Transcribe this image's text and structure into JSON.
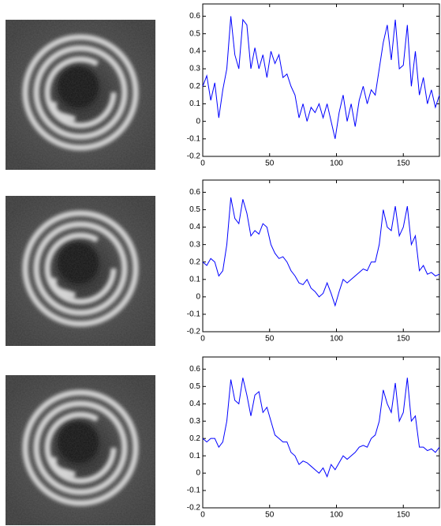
{
  "chart_data": [
    {
      "type": "line",
      "color": "#0000ff",
      "xlim": [
        0,
        177
      ],
      "ylim": [
        -0.2,
        0.67
      ],
      "xticks": [
        0,
        50,
        100,
        150
      ],
      "yticks": [
        -0.2,
        -0.1,
        0,
        0.1,
        0.2,
        0.3,
        0.4,
        0.5,
        0.6
      ],
      "x": [
        0,
        3,
        6,
        9,
        12,
        15,
        18,
        21,
        24,
        27,
        30,
        33,
        36,
        39,
        42,
        45,
        48,
        51,
        54,
        57,
        60,
        63,
        66,
        69,
        72,
        75,
        78,
        81,
        84,
        87,
        90,
        93,
        96,
        99,
        102,
        105,
        108,
        111,
        114,
        117,
        120,
        123,
        126,
        129,
        132,
        135,
        138,
        141,
        144,
        147,
        150,
        153,
        156,
        159,
        162,
        165,
        168,
        171,
        174,
        177
      ],
      "values": [
        0.2,
        0.26,
        0.12,
        0.22,
        0.02,
        0.18,
        0.3,
        0.6,
        0.38,
        0.3,
        0.58,
        0.55,
        0.3,
        0.42,
        0.3,
        0.38,
        0.25,
        0.4,
        0.33,
        0.38,
        0.25,
        0.27,
        0.2,
        0.15,
        0.02,
        0.1,
        0.0,
        0.08,
        0.05,
        0.1,
        0.02,
        0.1,
        0.0,
        -0.1,
        0.05,
        0.15,
        0.0,
        0.1,
        -0.03,
        0.12,
        0.2,
        0.1,
        0.18,
        0.15,
        0.3,
        0.45,
        0.55,
        0.35,
        0.58,
        0.3,
        0.32,
        0.55,
        0.2,
        0.4,
        0.15,
        0.25,
        0.1,
        0.18,
        0.08,
        0.15
      ]
    },
    {
      "type": "line",
      "color": "#0000ff",
      "xlim": [
        0,
        177
      ],
      "ylim": [
        -0.2,
        0.67
      ],
      "xticks": [
        0,
        50,
        100,
        150
      ],
      "yticks": [
        -0.2,
        -0.1,
        0,
        0.1,
        0.2,
        0.3,
        0.4,
        0.5,
        0.6
      ],
      "x": [
        0,
        3,
        6,
        9,
        12,
        15,
        18,
        21,
        24,
        27,
        30,
        33,
        36,
        39,
        42,
        45,
        48,
        51,
        54,
        57,
        60,
        63,
        66,
        69,
        72,
        75,
        78,
        81,
        84,
        87,
        90,
        93,
        96,
        99,
        102,
        105,
        108,
        111,
        114,
        117,
        120,
        123,
        126,
        129,
        132,
        135,
        138,
        141,
        144,
        147,
        150,
        153,
        156,
        159,
        162,
        165,
        168,
        171,
        174,
        177
      ],
      "values": [
        0.2,
        0.18,
        0.22,
        0.2,
        0.12,
        0.15,
        0.3,
        0.57,
        0.45,
        0.42,
        0.56,
        0.48,
        0.35,
        0.38,
        0.36,
        0.42,
        0.4,
        0.3,
        0.25,
        0.22,
        0.23,
        0.2,
        0.15,
        0.12,
        0.08,
        0.07,
        0.1,
        0.05,
        0.03,
        0.0,
        0.02,
        0.08,
        0.02,
        -0.05,
        0.03,
        0.1,
        0.08,
        0.1,
        0.12,
        0.14,
        0.16,
        0.15,
        0.2,
        0.2,
        0.3,
        0.5,
        0.4,
        0.38,
        0.52,
        0.35,
        0.4,
        0.52,
        0.3,
        0.35,
        0.15,
        0.18,
        0.13,
        0.14,
        0.12,
        0.13
      ]
    },
    {
      "type": "line",
      "color": "#0000ff",
      "xlim": [
        0,
        177
      ],
      "ylim": [
        -0.2,
        0.67
      ],
      "xticks": [
        0,
        50,
        100,
        150
      ],
      "yticks": [
        -0.2,
        -0.1,
        0,
        0.1,
        0.2,
        0.3,
        0.4,
        0.5,
        0.6
      ],
      "x": [
        0,
        3,
        6,
        9,
        12,
        15,
        18,
        21,
        24,
        27,
        30,
        33,
        36,
        39,
        42,
        45,
        48,
        51,
        54,
        57,
        60,
        63,
        66,
        69,
        72,
        75,
        78,
        81,
        84,
        87,
        90,
        93,
        96,
        99,
        102,
        105,
        108,
        111,
        114,
        117,
        120,
        123,
        126,
        129,
        132,
        135,
        138,
        141,
        144,
        147,
        150,
        153,
        156,
        159,
        162,
        165,
        168,
        171,
        174,
        177
      ],
      "values": [
        0.2,
        0.18,
        0.2,
        0.2,
        0.15,
        0.18,
        0.3,
        0.54,
        0.42,
        0.4,
        0.55,
        0.45,
        0.33,
        0.45,
        0.47,
        0.35,
        0.38,
        0.3,
        0.22,
        0.2,
        0.18,
        0.18,
        0.12,
        0.1,
        0.05,
        0.07,
        0.06,
        0.04,
        0.02,
        0.0,
        0.03,
        -0.02,
        0.05,
        0.02,
        0.06,
        0.1,
        0.08,
        0.1,
        0.12,
        0.15,
        0.16,
        0.15,
        0.2,
        0.22,
        0.3,
        0.48,
        0.4,
        0.35,
        0.52,
        0.3,
        0.35,
        0.55,
        0.3,
        0.33,
        0.15,
        0.15,
        0.13,
        0.14,
        0.12,
        0.15
      ]
    }
  ]
}
